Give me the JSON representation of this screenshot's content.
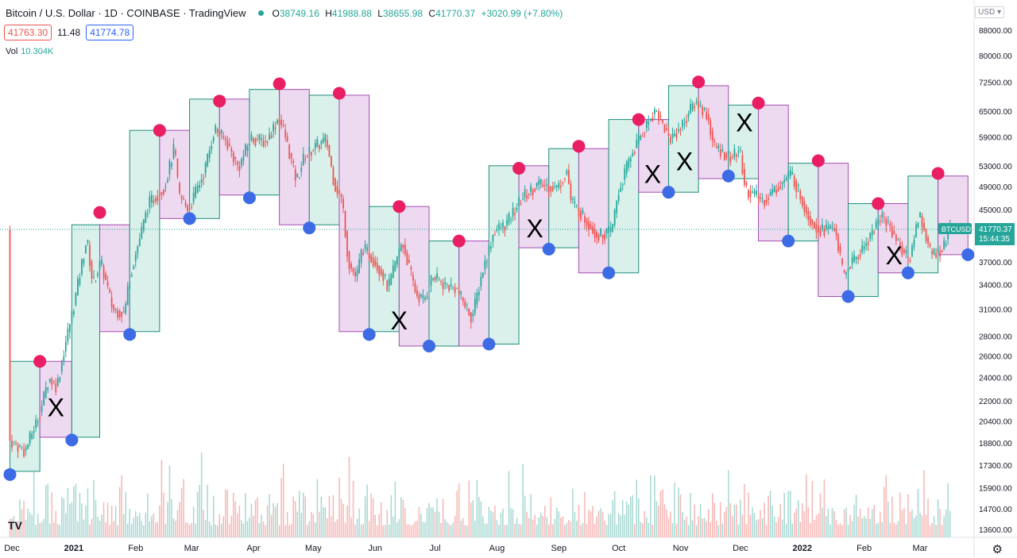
{
  "header": {
    "title": "Bitcoin / U.S. Dollar · 1D · COINBASE · TradingView",
    "open_label": "O",
    "open": "38749.16",
    "high_label": "H",
    "high": "41988.88",
    "low_label": "L",
    "low": "38655.98",
    "close_label": "C",
    "close": "41770.37",
    "change": "+3020.99 (+7.80%)"
  },
  "quote": {
    "sell": "41763.30",
    "spread": "11.48",
    "buy": "41774.78"
  },
  "volume": {
    "label": "Vol",
    "value": "10.304K"
  },
  "currency": "USD",
  "logo_text": "TV",
  "price_label": {
    "symbol": "BTCUSD",
    "price": "41770.37",
    "countdown": "15:44:35"
  },
  "colors": {
    "up": "#26a69a",
    "down": "#ef5350",
    "green_box": "#d2ede8",
    "purple_box": "#ead4ef",
    "high_dot": "#e91e63",
    "low_dot": "#3d6be6"
  },
  "chart_data": {
    "type": "candlestick",
    "y_scale": "log",
    "y_ticks": [
      88000,
      80000,
      72500,
      65000,
      59000,
      53000,
      49000,
      45000,
      41000,
      37000,
      34000,
      31000,
      28000,
      26000,
      24000,
      22000,
      20400,
      18800,
      17300,
      15900,
      14700,
      13600
    ],
    "x_ticks": [
      {
        "label": "Dec",
        "date": "2020-12-01"
      },
      {
        "label": "2021",
        "date": "2021-01-01"
      },
      {
        "label": "Feb",
        "date": "2021-02-01"
      },
      {
        "label": "Mar",
        "date": "2021-03-01"
      },
      {
        "label": "Apr",
        "date": "2021-04-01"
      },
      {
        "label": "May",
        "date": "2021-05-01"
      },
      {
        "label": "Jun",
        "date": "2021-06-01"
      },
      {
        "label": "Jul",
        "date": "2021-07-01"
      },
      {
        "label": "Aug",
        "date": "2021-08-01"
      },
      {
        "label": "Sep",
        "date": "2021-09-01"
      },
      {
        "label": "Oct",
        "date": "2021-10-01"
      },
      {
        "label": "Nov",
        "date": "2021-11-01"
      },
      {
        "label": "Dec",
        "date": "2021-12-01"
      },
      {
        "label": "2022",
        "date": "2022-01-01"
      },
      {
        "label": "Feb",
        "date": "2022-02-01"
      },
      {
        "label": "Mar",
        "date": "2022-03-01"
      }
    ],
    "price_path": [
      [
        "2020-11-30",
        19000
      ],
      [
        "2020-12-08",
        18200
      ],
      [
        "2020-12-16",
        21300
      ],
      [
        "2020-12-20",
        24000
      ],
      [
        "2020-12-24",
        23200
      ],
      [
        "2020-12-28",
        27000
      ],
      [
        "2021-01-02",
        32000
      ],
      [
        "2021-01-08",
        40500
      ],
      [
        "2021-01-11",
        34000
      ],
      [
        "2021-01-15",
        37000
      ],
      [
        "2021-01-21",
        31000
      ],
      [
        "2021-01-27",
        30500
      ],
      [
        "2021-01-29",
        34500
      ],
      [
        "2021-02-08",
        46000
      ],
      [
        "2021-02-16",
        49000
      ],
      [
        "2021-02-21",
        57000
      ],
      [
        "2021-02-23",
        47500
      ],
      [
        "2021-02-28",
        45000
      ],
      [
        "2021-03-08",
        52000
      ],
      [
        "2021-03-13",
        61000
      ],
      [
        "2021-03-19",
        58000
      ],
      [
        "2021-03-25",
        52500
      ],
      [
        "2021-03-31",
        58800
      ],
      [
        "2021-04-08",
        58000
      ],
      [
        "2021-04-14",
        63500
      ],
      [
        "2021-04-17",
        60000
      ],
      [
        "2021-04-23",
        50000
      ],
      [
        "2021-04-27",
        55000
      ],
      [
        "2021-05-03",
        57000
      ],
      [
        "2021-05-08",
        58500
      ],
      [
        "2021-05-12",
        49500
      ],
      [
        "2021-05-16",
        46500
      ],
      [
        "2021-05-19",
        37000
      ],
      [
        "2021-05-23",
        34800
      ],
      [
        "2021-05-26",
        39000
      ],
      [
        "2021-05-31",
        37500
      ],
      [
        "2021-06-05",
        35500
      ],
      [
        "2021-06-08",
        33500
      ],
      [
        "2021-06-15",
        40000
      ],
      [
        "2021-06-22",
        32800
      ],
      [
        "2021-06-26",
        32000
      ],
      [
        "2021-06-30",
        35000
      ],
      [
        "2021-07-06",
        34000
      ],
      [
        "2021-07-12",
        33500
      ],
      [
        "2021-07-20",
        30000
      ],
      [
        "2021-07-25",
        35500
      ],
      [
        "2021-07-31",
        41500
      ],
      [
        "2021-08-06",
        42500
      ],
      [
        "2021-08-14",
        47000
      ],
      [
        "2021-08-22",
        49500
      ],
      [
        "2021-09-01",
        48800
      ],
      [
        "2021-09-06",
        52500
      ],
      [
        "2021-09-07",
        46800
      ],
      [
        "2021-09-21",
        40800
      ],
      [
        "2021-09-28",
        41500
      ],
      [
        "2021-10-01",
        47500
      ],
      [
        "2021-10-07",
        54500
      ],
      [
        "2021-10-15",
        61500
      ],
      [
        "2021-10-20",
        65500
      ],
      [
        "2021-10-27",
        58500
      ],
      [
        "2021-11-02",
        61500
      ],
      [
        "2021-11-09",
        67500
      ],
      [
        "2021-11-15",
        64000
      ],
      [
        "2021-11-18",
        57000
      ],
      [
        "2021-11-27",
        54500
      ],
      [
        "2021-12-01",
        56500
      ],
      [
        "2021-12-04",
        48500
      ],
      [
        "2021-12-13",
        46500
      ],
      [
        "2021-12-27",
        51500
      ],
      [
        "2022-01-05",
        43500
      ],
      [
        "2022-01-10",
        41800
      ],
      [
        "2022-01-18",
        42000
      ],
      [
        "2022-01-22",
        35000
      ],
      [
        "2022-01-25",
        36500
      ],
      [
        "2022-01-31",
        38500
      ],
      [
        "2022-02-10",
        44000
      ],
      [
        "2022-02-14",
        42500
      ],
      [
        "2022-02-18",
        40000
      ],
      [
        "2022-02-24",
        37000
      ],
      [
        "2022-03-01",
        44500
      ],
      [
        "2022-03-07",
        38000
      ],
      [
        "2022-03-13",
        38800
      ],
      [
        "2022-03-16",
        41770
      ]
    ],
    "monthly_boxes": [
      {
        "start": "2020-11-30",
        "end": "2020-12-15",
        "low": 16900,
        "high": 25500,
        "color": "green"
      },
      {
        "start": "2020-12-15",
        "end": "2020-12-31",
        "low": 19200,
        "high": 25500,
        "color": "purple"
      },
      {
        "start": "2020-12-31",
        "end": "2021-01-14",
        "low": 19200,
        "high": 42500,
        "color": "green"
      },
      {
        "start": "2021-01-14",
        "end": "2021-01-29",
        "low": 28500,
        "high": 42500,
        "color": "purple"
      },
      {
        "start": "2021-01-29",
        "end": "2021-02-13",
        "low": 28500,
        "high": 60500,
        "color": "green"
      },
      {
        "start": "2021-02-13",
        "end": "2021-02-28",
        "low": 43500,
        "high": 60500,
        "color": "purple"
      },
      {
        "start": "2021-02-28",
        "end": "2021-03-15",
        "low": 43500,
        "high": 68000,
        "color": "green"
      },
      {
        "start": "2021-03-15",
        "end": "2021-03-30",
        "low": 47500,
        "high": 68000,
        "color": "purple"
      },
      {
        "start": "2021-03-30",
        "end": "2021-04-14",
        "low": 47500,
        "high": 70500,
        "color": "green"
      },
      {
        "start": "2021-04-14",
        "end": "2021-04-29",
        "low": 42500,
        "high": 70500,
        "color": "purple"
      },
      {
        "start": "2021-04-29",
        "end": "2021-05-14",
        "low": 42500,
        "high": 69000,
        "color": "green"
      },
      {
        "start": "2021-05-14",
        "end": "2021-05-29",
        "low": 28500,
        "high": 69000,
        "color": "purple"
      },
      {
        "start": "2021-05-29",
        "end": "2021-06-13",
        "low": 28500,
        "high": 45500,
        "color": "green"
      },
      {
        "start": "2021-06-13",
        "end": "2021-06-28",
        "low": 27000,
        "high": 45500,
        "color": "purple"
      },
      {
        "start": "2021-06-28",
        "end": "2021-07-13",
        "low": 27000,
        "high": 40000,
        "color": "green"
      },
      {
        "start": "2021-07-13",
        "end": "2021-07-28",
        "low": 27000,
        "high": 40000,
        "color": "purple"
      },
      {
        "start": "2021-07-28",
        "end": "2021-08-12",
        "low": 27200,
        "high": 53000,
        "color": "green"
      },
      {
        "start": "2021-08-12",
        "end": "2021-08-27",
        "low": 39000,
        "high": 53000,
        "color": "purple"
      },
      {
        "start": "2021-08-27",
        "end": "2021-09-11",
        "low": 39000,
        "high": 56500,
        "color": "green"
      },
      {
        "start": "2021-09-11",
        "end": "2021-09-26",
        "low": 35500,
        "high": 56500,
        "color": "purple"
      },
      {
        "start": "2021-09-26",
        "end": "2021-10-11",
        "low": 35500,
        "high": 63000,
        "color": "green"
      },
      {
        "start": "2021-10-11",
        "end": "2021-10-26",
        "low": 48000,
        "high": 63000,
        "color": "purple"
      },
      {
        "start": "2021-10-26",
        "end": "2021-11-10",
        "low": 48000,
        "high": 71500,
        "color": "green"
      },
      {
        "start": "2021-11-10",
        "end": "2021-11-25",
        "low": 50500,
        "high": 71500,
        "color": "purple"
      },
      {
        "start": "2021-11-25",
        "end": "2021-12-10",
        "low": 50500,
        "high": 66500,
        "color": "green"
      },
      {
        "start": "2021-12-10",
        "end": "2021-12-25",
        "low": 40000,
        "high": 66500,
        "color": "purple"
      },
      {
        "start": "2021-12-25",
        "end": "2022-01-09",
        "low": 40000,
        "high": 53500,
        "color": "green"
      },
      {
        "start": "2022-01-09",
        "end": "2022-01-24",
        "low": 32500,
        "high": 53500,
        "color": "purple"
      },
      {
        "start": "2022-01-24",
        "end": "2022-02-08",
        "low": 32500,
        "high": 46000,
        "color": "green"
      },
      {
        "start": "2022-02-08",
        "end": "2022-02-23",
        "low": 35500,
        "high": 46000,
        "color": "purple"
      },
      {
        "start": "2022-02-23",
        "end": "2022-03-10",
        "low": 35500,
        "high": 51000,
        "color": "green"
      },
      {
        "start": "2022-03-10",
        "end": "2022-03-25",
        "low": 38000,
        "high": 51000,
        "color": "purple"
      }
    ],
    "high_markers": [
      {
        "date": "2020-12-15",
        "price": 25500
      },
      {
        "date": "2021-01-14",
        "price": 44500
      },
      {
        "date": "2021-02-13",
        "price": 60500
      },
      {
        "date": "2021-03-15",
        "price": 67500
      },
      {
        "date": "2021-04-14",
        "price": 72000
      },
      {
        "date": "2021-05-14",
        "price": 69500
      },
      {
        "date": "2021-06-13",
        "price": 45500
      },
      {
        "date": "2021-07-13",
        "price": 40000
      },
      {
        "date": "2021-08-12",
        "price": 52500
      },
      {
        "date": "2021-09-11",
        "price": 57000
      },
      {
        "date": "2021-10-11",
        "price": 63000
      },
      {
        "date": "2021-11-10",
        "price": 72500
      },
      {
        "date": "2021-12-10",
        "price": 67000
      },
      {
        "date": "2022-01-09",
        "price": 54000
      },
      {
        "date": "2022-02-08",
        "price": 46000
      },
      {
        "date": "2022-03-10",
        "price": 51500
      }
    ],
    "low_markers": [
      {
        "date": "2020-11-30",
        "price": 16700
      },
      {
        "date": "2020-12-31",
        "price": 19000
      },
      {
        "date": "2021-01-29",
        "price": 28200
      },
      {
        "date": "2021-02-28",
        "price": 43500
      },
      {
        "date": "2021-03-30",
        "price": 47000
      },
      {
        "date": "2021-04-29",
        "price": 42000
      },
      {
        "date": "2021-05-29",
        "price": 28200
      },
      {
        "date": "2021-06-28",
        "price": 27000
      },
      {
        "date": "2021-07-28",
        "price": 27200
      },
      {
        "date": "2021-08-27",
        "price": 38800
      },
      {
        "date": "2021-09-26",
        "price": 35500
      },
      {
        "date": "2021-10-26",
        "price": 48000
      },
      {
        "date": "2021-11-25",
        "price": 51000
      },
      {
        "date": "2021-12-25",
        "price": 40000
      },
      {
        "date": "2022-01-24",
        "price": 32500
      },
      {
        "date": "2022-02-23",
        "price": 35500
      },
      {
        "date": "2022-03-25",
        "price": 38000
      }
    ],
    "x_annotations": [
      {
        "text": "X",
        "date": "2020-12-23",
        "price": 21500
      },
      {
        "text": "X",
        "date": "2021-06-13",
        "price": 29800
      },
      {
        "text": "X",
        "date": "2021-08-20",
        "price": 42000
      },
      {
        "text": "X",
        "date": "2021-10-18",
        "price": 51500
      },
      {
        "text": "X",
        "date": "2021-11-03",
        "price": 54000
      },
      {
        "text": "X",
        "date": "2021-12-03",
        "price": 62500
      },
      {
        "text": "X",
        "date": "2022-02-16",
        "price": 38000
      }
    ],
    "last_price": 41770.37
  }
}
